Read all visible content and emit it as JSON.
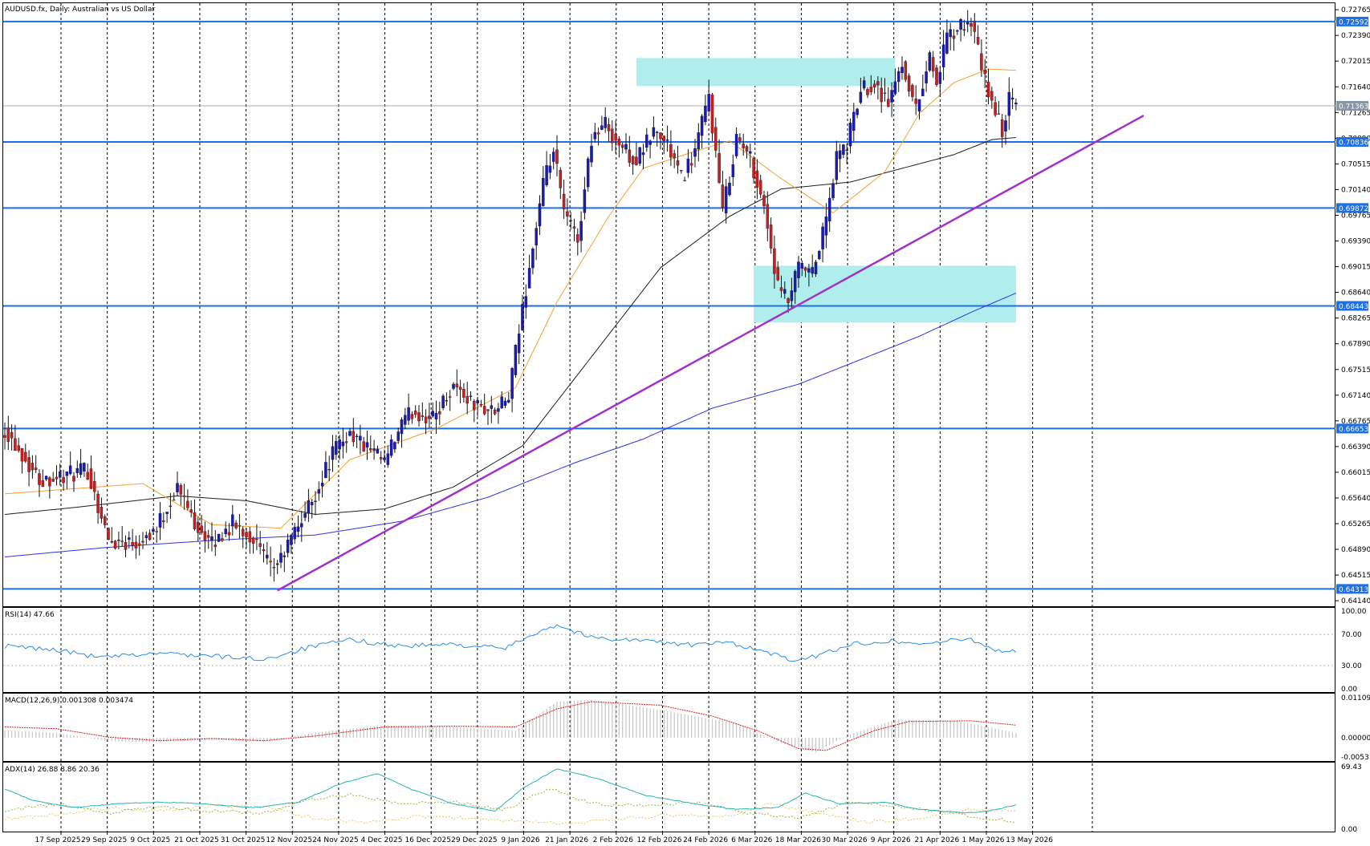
{
  "header": {
    "symbol": "AUDUSD.fx",
    "timeframe": "Daily",
    "description": "Australian vs US Dollar"
  },
  "chart_data": {
    "type": "candlestick",
    "x_ticks": [
      "17 Sep 2025",
      "29 Sep 2025",
      "9 Oct 2025",
      "21 Oct 2025",
      "31 Oct 2025",
      "12 Nov 2025",
      "24 Nov 2025",
      "4 Dec 2025",
      "16 Dec 2025",
      "29 Dec 2025",
      "9 Jan 2026",
      "21 Jan 2026",
      "2 Feb 2026",
      "12 Feb 2026",
      "24 Feb 2026",
      "6 Mar 2026",
      "18 Mar 2026",
      "30 Mar 2026",
      "9 Apr 2026",
      "21 Apr 2026",
      "1 May 2026",
      "13 May 2026"
    ],
    "price_ticks": [
      "0.72765",
      "0.72390",
      "0.72015",
      "0.71640",
      "0.71265",
      "0.70890",
      "0.70515",
      "0.70140",
      "0.69765",
      "0.69390",
      "0.69015",
      "0.68640",
      "0.68265",
      "0.67890",
      "0.67515",
      "0.67140",
      "0.66765",
      "0.66390",
      "0.66015",
      "0.65640",
      "0.65265",
      "0.64890",
      "0.64515",
      "0.64140"
    ],
    "ylim": [
      0.6406,
      0.7286
    ],
    "horizontal_levels": [
      {
        "label": "0.72592",
        "value": 0.72592
      },
      {
        "label": "0.70836",
        "value": 0.70836
      },
      {
        "label": "0.69872",
        "value": 0.69872
      },
      {
        "label": "0.68443",
        "value": 0.68443
      },
      {
        "label": "0.66653",
        "value": 0.66653
      },
      {
        "label": "0.64313",
        "value": 0.64313
      }
    ],
    "current_price": {
      "label": "0.71363",
      "value": 0.71363
    },
    "zones": [
      {
        "from_bar": 183,
        "to_bar": 258,
        "low": 0.7165,
        "high": 0.7206
      },
      {
        "from_bar": 217,
        "to_bar": 293,
        "low": 0.682,
        "high": 0.6903
      }
    ],
    "trendline": {
      "from_bar": 79,
      "from_price": 0.6429,
      "to_bar": 330,
      "to_price": 0.7122
    },
    "anchors": [
      {
        "bar": 0,
        "price": 0.6665
      },
      {
        "bar": 10,
        "price": 0.6591
      },
      {
        "bar": 18,
        "price": 0.6597
      },
      {
        "bar": 24,
        "price": 0.6604
      },
      {
        "bar": 30,
        "price": 0.6502
      },
      {
        "bar": 38,
        "price": 0.65
      },
      {
        "bar": 44,
        "price": 0.652
      },
      {
        "bar": 50,
        "price": 0.658
      },
      {
        "bar": 55,
        "price": 0.653
      },
      {
        "bar": 60,
        "price": 0.6495
      },
      {
        "bar": 66,
        "price": 0.6527
      },
      {
        "bar": 72,
        "price": 0.6505
      },
      {
        "bar": 77,
        "price": 0.646
      },
      {
        "bar": 80,
        "price": 0.6475
      },
      {
        "bar": 84,
        "price": 0.6515
      },
      {
        "bar": 90,
        "price": 0.657
      },
      {
        "bar": 95,
        "price": 0.663
      },
      {
        "bar": 100,
        "price": 0.666
      },
      {
        "bar": 104,
        "price": 0.664
      },
      {
        "bar": 110,
        "price": 0.6615
      },
      {
        "bar": 115,
        "price": 0.667
      },
      {
        "bar": 118,
        "price": 0.669
      },
      {
        "bar": 124,
        "price": 0.668
      },
      {
        "bar": 130,
        "price": 0.673
      },
      {
        "bar": 136,
        "price": 0.67
      },
      {
        "bar": 142,
        "price": 0.669
      },
      {
        "bar": 146,
        "price": 0.671
      },
      {
        "bar": 150,
        "price": 0.684
      },
      {
        "bar": 152,
        "price": 0.69
      },
      {
        "bar": 156,
        "price": 0.702
      },
      {
        "bar": 159,
        "price": 0.707
      },
      {
        "bar": 162,
        "price": 0.698
      },
      {
        "bar": 166,
        "price": 0.694
      },
      {
        "bar": 170,
        "price": 0.709
      },
      {
        "bar": 174,
        "price": 0.711
      },
      {
        "bar": 178,
        "price": 0.708
      },
      {
        "bar": 183,
        "price": 0.7055
      },
      {
        "bar": 188,
        "price": 0.71
      },
      {
        "bar": 192,
        "price": 0.708
      },
      {
        "bar": 196,
        "price": 0.703
      },
      {
        "bar": 200,
        "price": 0.707
      },
      {
        "bar": 204,
        "price": 0.715
      },
      {
        "bar": 208,
        "price": 0.698
      },
      {
        "bar": 212,
        "price": 0.709
      },
      {
        "bar": 216,
        "price": 0.706
      },
      {
        "bar": 220,
        "price": 0.699
      },
      {
        "bar": 224,
        "price": 0.687
      },
      {
        "bar": 227,
        "price": 0.685
      },
      {
        "bar": 230,
        "price": 0.69
      },
      {
        "bar": 234,
        "price": 0.689
      },
      {
        "bar": 238,
        "price": 0.697
      },
      {
        "bar": 241,
        "price": 0.706
      },
      {
        "bar": 244,
        "price": 0.708
      },
      {
        "bar": 248,
        "price": 0.716
      },
      {
        "bar": 252,
        "price": 0.717
      },
      {
        "bar": 256,
        "price": 0.714
      },
      {
        "bar": 260,
        "price": 0.72
      },
      {
        "bar": 264,
        "price": 0.713
      },
      {
        "bar": 268,
        "price": 0.721
      },
      {
        "bar": 270,
        "price": 0.717
      },
      {
        "bar": 273,
        "price": 0.7235
      },
      {
        "bar": 277,
        "price": 0.725
      },
      {
        "bar": 280,
        "price": 0.726
      },
      {
        "bar": 283,
        "price": 0.719
      },
      {
        "bar": 286,
        "price": 0.714
      },
      {
        "bar": 289,
        "price": 0.71
      },
      {
        "bar": 291,
        "price": 0.7145
      },
      {
        "bar": 293,
        "price": 0.7136
      }
    ],
    "ma_anchors": {
      "ema20": [
        {
          "bar": 0,
          "price": 0.657
        },
        {
          "bar": 40,
          "price": 0.6585
        },
        {
          "bar": 60,
          "price": 0.6525
        },
        {
          "bar": 80,
          "price": 0.652
        },
        {
          "bar": 100,
          "price": 0.662
        },
        {
          "bar": 125,
          "price": 0.6665
        },
        {
          "bar": 148,
          "price": 0.6725
        },
        {
          "bar": 160,
          "price": 0.685
        },
        {
          "bar": 175,
          "price": 0.6975
        },
        {
          "bar": 185,
          "price": 0.7045
        },
        {
          "bar": 200,
          "price": 0.707
        },
        {
          "bar": 210,
          "price": 0.7085
        },
        {
          "bar": 225,
          "price": 0.703
        },
        {
          "bar": 240,
          "price": 0.698
        },
        {
          "bar": 255,
          "price": 0.704
        },
        {
          "bar": 265,
          "price": 0.7125
        },
        {
          "bar": 275,
          "price": 0.717
        },
        {
          "bar": 285,
          "price": 0.719
        },
        {
          "bar": 293,
          "price": 0.7188
        }
      ],
      "sma100": [
        {
          "bar": 0,
          "price": 0.654
        },
        {
          "bar": 20,
          "price": 0.655
        },
        {
          "bar": 50,
          "price": 0.6567
        },
        {
          "bar": 70,
          "price": 0.656
        },
        {
          "bar": 90,
          "price": 0.654
        },
        {
          "bar": 110,
          "price": 0.6548
        },
        {
          "bar": 130,
          "price": 0.658
        },
        {
          "bar": 150,
          "price": 0.664
        },
        {
          "bar": 170,
          "price": 0.677
        },
        {
          "bar": 190,
          "price": 0.69
        },
        {
          "bar": 210,
          "price": 0.6975
        },
        {
          "bar": 225,
          "price": 0.7015
        },
        {
          "bar": 245,
          "price": 0.7025
        },
        {
          "bar": 260,
          "price": 0.7045
        },
        {
          "bar": 275,
          "price": 0.7065
        },
        {
          "bar": 286,
          "price": 0.7087
        },
        {
          "bar": 293,
          "price": 0.709
        }
      ],
      "sma200": [
        {
          "bar": 0,
          "price": 0.6478
        },
        {
          "bar": 30,
          "price": 0.6492
        },
        {
          "bar": 60,
          "price": 0.6502
        },
        {
          "bar": 90,
          "price": 0.651
        },
        {
          "bar": 115,
          "price": 0.653
        },
        {
          "bar": 140,
          "price": 0.6565
        },
        {
          "bar": 165,
          "price": 0.6615
        },
        {
          "bar": 185,
          "price": 0.665
        },
        {
          "bar": 205,
          "price": 0.6695
        },
        {
          "bar": 230,
          "price": 0.673
        },
        {
          "bar": 245,
          "price": 0.676
        },
        {
          "bar": 265,
          "price": 0.68
        },
        {
          "bar": 280,
          "price": 0.6835
        },
        {
          "bar": 293,
          "price": 0.6863
        }
      ]
    },
    "rsi": {
      "label": "RSI(14) 47.66",
      "ticks": [
        "100.00",
        "70.00",
        "30.00",
        "0.00"
      ],
      "levels": [
        70,
        30
      ],
      "anchors": [
        {
          "bar": 0,
          "value": 55
        },
        {
          "bar": 15,
          "value": 50
        },
        {
          "bar": 28,
          "value": 40
        },
        {
          "bar": 45,
          "value": 46
        },
        {
          "bar": 60,
          "value": 42
        },
        {
          "bar": 75,
          "value": 38
        },
        {
          "bar": 88,
          "value": 53
        },
        {
          "bar": 100,
          "value": 63
        },
        {
          "bar": 115,
          "value": 55
        },
        {
          "bar": 130,
          "value": 57
        },
        {
          "bar": 145,
          "value": 52
        },
        {
          "bar": 155,
          "value": 75
        },
        {
          "bar": 160,
          "value": 82
        },
        {
          "bar": 170,
          "value": 66
        },
        {
          "bar": 185,
          "value": 62
        },
        {
          "bar": 200,
          "value": 56
        },
        {
          "bar": 210,
          "value": 60
        },
        {
          "bar": 222,
          "value": 45
        },
        {
          "bar": 230,
          "value": 35
        },
        {
          "bar": 245,
          "value": 57
        },
        {
          "bar": 255,
          "value": 62
        },
        {
          "bar": 265,
          "value": 58
        },
        {
          "bar": 280,
          "value": 64
        },
        {
          "bar": 287,
          "value": 50
        },
        {
          "bar": 293,
          "value": 47.66
        }
      ]
    },
    "macd": {
      "label": "MACD(12,26,9) 0.001308 0.003474",
      "ticks": [
        "0.011099",
        "0.000000",
        "-0.005310"
      ],
      "range": [
        -0.00531,
        0.011099
      ],
      "hist_anchors": [
        {
          "bar": 0,
          "value": 0.002
        },
        {
          "bar": 15,
          "value": 0.0014
        },
        {
          "bar": 30,
          "value": -0.001
        },
        {
          "bar": 45,
          "value": -0.0012
        },
        {
          "bar": 60,
          "value": -0.0005
        },
        {
          "bar": 75,
          "value": -0.0012
        },
        {
          "bar": 90,
          "value": 0.0015
        },
        {
          "bar": 110,
          "value": 0.0035
        },
        {
          "bar": 130,
          "value": 0.003
        },
        {
          "bar": 148,
          "value": 0.002
        },
        {
          "bar": 160,
          "value": 0.01
        },
        {
          "bar": 170,
          "value": 0.0105
        },
        {
          "bar": 185,
          "value": 0.0085
        },
        {
          "bar": 200,
          "value": 0.006
        },
        {
          "bar": 212,
          "value": 0.004
        },
        {
          "bar": 225,
          "value": -0.0015
        },
        {
          "bar": 235,
          "value": -0.004
        },
        {
          "bar": 245,
          "value": 0.001
        },
        {
          "bar": 258,
          "value": 0.005
        },
        {
          "bar": 275,
          "value": 0.0048
        },
        {
          "bar": 285,
          "value": 0.003
        },
        {
          "bar": 293,
          "value": 0.0013
        }
      ],
      "signal_anchors": [
        {
          "bar": 0,
          "value": 0.003
        },
        {
          "bar": 15,
          "value": 0.0025
        },
        {
          "bar": 30,
          "value": 0.0002
        },
        {
          "bar": 45,
          "value": -0.0008
        },
        {
          "bar": 60,
          "value": -0.0002
        },
        {
          "bar": 75,
          "value": -0.0008
        },
        {
          "bar": 90,
          "value": 0.0005
        },
        {
          "bar": 110,
          "value": 0.003
        },
        {
          "bar": 130,
          "value": 0.0032
        },
        {
          "bar": 148,
          "value": 0.003
        },
        {
          "bar": 160,
          "value": 0.008
        },
        {
          "bar": 170,
          "value": 0.01
        },
        {
          "bar": 190,
          "value": 0.009
        },
        {
          "bar": 205,
          "value": 0.006
        },
        {
          "bar": 218,
          "value": 0.002
        },
        {
          "bar": 230,
          "value": -0.003
        },
        {
          "bar": 238,
          "value": -0.0035
        },
        {
          "bar": 252,
          "value": 0.002
        },
        {
          "bar": 262,
          "value": 0.0045
        },
        {
          "bar": 280,
          "value": 0.0047
        },
        {
          "bar": 293,
          "value": 0.0035
        }
      ]
    },
    "adx": {
      "label": "ADX(14) 26.88 8.86 20.36",
      "ticks": [
        "69.43",
        "0.00"
      ],
      "range": [
        0,
        69.43
      ],
      "adx_anchors": [
        {
          "bar": 0,
          "value": 45
        },
        {
          "bar": 8,
          "value": 32
        },
        {
          "bar": 20,
          "value": 24
        },
        {
          "bar": 32,
          "value": 28
        },
        {
          "bar": 45,
          "value": 30
        },
        {
          "bar": 58,
          "value": 28
        },
        {
          "bar": 72,
          "value": 24
        },
        {
          "bar": 85,
          "value": 30
        },
        {
          "bar": 97,
          "value": 50
        },
        {
          "bar": 108,
          "value": 62
        },
        {
          "bar": 118,
          "value": 44
        },
        {
          "bar": 130,
          "value": 28
        },
        {
          "bar": 142,
          "value": 20
        },
        {
          "bar": 150,
          "value": 45
        },
        {
          "bar": 160,
          "value": 67
        },
        {
          "bar": 172,
          "value": 56
        },
        {
          "bar": 185,
          "value": 38
        },
        {
          "bar": 200,
          "value": 28
        },
        {
          "bar": 212,
          "value": 22
        },
        {
          "bar": 224,
          "value": 24
        },
        {
          "bar": 232,
          "value": 40
        },
        {
          "bar": 242,
          "value": 28
        },
        {
          "bar": 255,
          "value": 30
        },
        {
          "bar": 265,
          "value": 22
        },
        {
          "bar": 278,
          "value": 18
        },
        {
          "bar": 285,
          "value": 20
        },
        {
          "bar": 293,
          "value": 26.88
        }
      ],
      "plus_di_anchors": [
        {
          "bar": 0,
          "value": 20
        },
        {
          "bar": 15,
          "value": 28
        },
        {
          "bar": 30,
          "value": 18
        },
        {
          "bar": 45,
          "value": 25
        },
        {
          "bar": 60,
          "value": 20
        },
        {
          "bar": 75,
          "value": 18
        },
        {
          "bar": 90,
          "value": 34
        },
        {
          "bar": 100,
          "value": 38
        },
        {
          "bar": 115,
          "value": 28
        },
        {
          "bar": 130,
          "value": 30
        },
        {
          "bar": 145,
          "value": 22
        },
        {
          "bar": 158,
          "value": 45
        },
        {
          "bar": 170,
          "value": 28
        },
        {
          "bar": 185,
          "value": 26
        },
        {
          "bar": 200,
          "value": 30
        },
        {
          "bar": 215,
          "value": 18
        },
        {
          "bar": 230,
          "value": 12
        },
        {
          "bar": 245,
          "value": 30
        },
        {
          "bar": 258,
          "value": 26
        },
        {
          "bar": 270,
          "value": 20
        },
        {
          "bar": 280,
          "value": 14
        },
        {
          "bar": 293,
          "value": 8.86
        }
      ],
      "minus_di_anchors": [
        {
          "bar": 0,
          "value": 12
        },
        {
          "bar": 15,
          "value": 16
        },
        {
          "bar": 30,
          "value": 24
        },
        {
          "bar": 45,
          "value": 20
        },
        {
          "bar": 60,
          "value": 26
        },
        {
          "bar": 75,
          "value": 25
        },
        {
          "bar": 90,
          "value": 12
        },
        {
          "bar": 105,
          "value": 8
        },
        {
          "bar": 120,
          "value": 14
        },
        {
          "bar": 135,
          "value": 12
        },
        {
          "bar": 150,
          "value": 8
        },
        {
          "bar": 165,
          "value": 6
        },
        {
          "bar": 180,
          "value": 12
        },
        {
          "bar": 195,
          "value": 16
        },
        {
          "bar": 210,
          "value": 14
        },
        {
          "bar": 222,
          "value": 28
        },
        {
          "bar": 235,
          "value": 18
        },
        {
          "bar": 250,
          "value": 8
        },
        {
          "bar": 265,
          "value": 12
        },
        {
          "bar": 280,
          "value": 22
        },
        {
          "bar": 293,
          "value": 20.36
        }
      ]
    },
    "colors": {
      "bull": "#1a1ab4",
      "bear": "#c81e1e",
      "level": "#1e6ee6",
      "zone": "#b0eeee",
      "trend": "#a032c8",
      "ema": "#f5a032",
      "sma100": "#1e1e1e",
      "sma200": "#3232dc",
      "rsi": "#2d8ce6",
      "macd_hist": "#c8c8c8",
      "macd_signal": "#dc1e1e",
      "adx_main": "#2bb3b3",
      "adx_plus": "#9bb43c",
      "adx_minus": "#e6c864"
    }
  }
}
